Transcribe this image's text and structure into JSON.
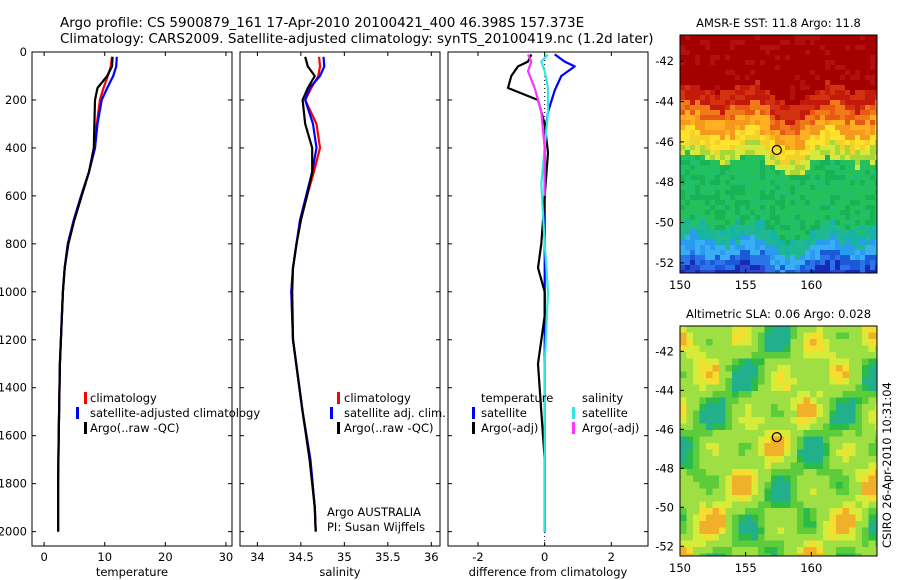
{
  "header": {
    "line1": "Argo profile: CS 5900879_161 17-Apr-2010 20100421_400 46.398S 157.373E",
    "line2": "Climatology: CARS2009. Satellite-adjusted climatology: synTS_20100419.nc (1.2d later)"
  },
  "colors": {
    "climatology": "#ff0000",
    "satellite": "#0000ff",
    "argo": "#000000",
    "sal_satellite": "#33e6e6",
    "sal_argo": "#ff33ff"
  },
  "chart_data": [
    {
      "type": "line",
      "xlabel": "temperature",
      "xticks": [
        "0",
        "10",
        "20",
        "30"
      ],
      "xlim": [
        -2,
        31
      ],
      "ylim": [
        2060,
        0
      ],
      "yticks": [
        "0",
        "200",
        "400",
        "600",
        "800",
        "1000",
        "1200",
        "1400",
        "1600",
        "1800",
        "2000"
      ],
      "series": [
        {
          "name": "climatology",
          "key": "climatology",
          "x": [
            11.2,
            11.0,
            10.5,
            9.8,
            9.2,
            8.7,
            8.4,
            7.4,
            6.1,
            4.9,
            3.9,
            3.4,
            3.1,
            2.6,
            2.4,
            2.3,
            2.3
          ],
          "y": [
            20,
            60,
            100,
            150,
            200,
            300,
            400,
            500,
            600,
            700,
            800,
            900,
            1000,
            1300,
            1600,
            1800,
            2000
          ]
        },
        {
          "name": "satellite-adjusted climatology",
          "key": "satellite",
          "x": [
            12.0,
            11.9,
            11.4,
            10.4,
            9.5,
            8.8,
            8.4,
            7.4,
            6.1,
            4.9,
            3.9,
            3.4,
            3.1,
            2.6,
            2.4,
            2.3,
            2.3
          ],
          "y": [
            20,
            60,
            100,
            150,
            200,
            300,
            400,
            500,
            600,
            700,
            800,
            900,
            1000,
            1300,
            1600,
            1800,
            2000
          ]
        },
        {
          "name": "Argo(..raw -QC)",
          "key": "argo",
          "x": [
            11.3,
            11.2,
            10.4,
            8.8,
            8.4,
            8.3,
            8.2,
            7.4,
            6.2,
            5.0,
            4.0,
            3.4,
            3.1,
            2.6,
            2.4,
            2.3,
            2.3
          ],
          "y": [
            20,
            60,
            100,
            150,
            200,
            300,
            400,
            500,
            600,
            700,
            800,
            900,
            1000,
            1300,
            1600,
            1800,
            2000
          ]
        }
      ],
      "legend": [
        "climatology",
        "satellite-adjusted climatology",
        "Argo(..raw -QC)"
      ]
    },
    {
      "type": "line",
      "xlabel": "salinity",
      "xticks": [
        "34",
        "34.5",
        "35",
        "35.5",
        "36"
      ],
      "xlim": [
        33.8,
        36.1
      ],
      "ylim": [
        2060,
        0
      ],
      "series": [
        {
          "name": "climatology",
          "key": "climatology",
          "x": [
            34.71,
            34.72,
            34.7,
            34.62,
            34.55,
            34.68,
            34.72,
            34.65,
            34.57,
            34.5,
            34.45,
            34.41,
            34.39,
            34.41,
            34.52,
            34.61,
            34.66,
            34.67
          ],
          "y": [
            20,
            60,
            100,
            150,
            200,
            300,
            400,
            500,
            600,
            700,
            800,
            900,
            1000,
            1200,
            1500,
            1700,
            1900,
            2000
          ]
        },
        {
          "name": "satellite adj. clim.",
          "key": "satellite",
          "x": [
            34.76,
            34.77,
            34.72,
            34.6,
            34.55,
            34.64,
            34.68,
            34.63,
            34.56,
            34.49,
            34.45,
            34.41,
            34.39,
            34.41,
            34.52,
            34.61,
            34.66,
            34.67
          ],
          "y": [
            20,
            60,
            100,
            150,
            200,
            300,
            400,
            500,
            600,
            700,
            800,
            900,
            1000,
            1200,
            1500,
            1700,
            1900,
            2000
          ]
        },
        {
          "name": "Argo(..raw -QC)",
          "key": "argo",
          "x": [
            34.55,
            34.58,
            34.66,
            34.58,
            34.52,
            34.55,
            34.63,
            34.63,
            34.57,
            34.5,
            34.45,
            34.41,
            34.4,
            34.41,
            34.52,
            34.6,
            34.66,
            34.67
          ],
          "y": [
            20,
            60,
            100,
            150,
            200,
            300,
            400,
            500,
            600,
            700,
            800,
            900,
            1000,
            1200,
            1500,
            1700,
            1900,
            2000
          ]
        }
      ],
      "legend": [
        "climatology",
        "satellite adj. clim.",
        "Argo(..raw -QC)"
      ],
      "annotation": [
        "Argo AUSTRALIA",
        "PI: Susan Wijffels"
      ]
    },
    {
      "type": "line",
      "xlabel": "difference from climatology",
      "xticks": [
        "-2",
        "0",
        "2"
      ],
      "xlim": [
        -2.9,
        3.1
      ],
      "ylim": [
        2060,
        0
      ],
      "series": [
        {
          "name": "temperature satellite",
          "key": "satellite",
          "x": [
            0.3,
            0.6,
            0.9,
            0.5,
            0.3,
            0.1,
            0.0,
            0.0,
            0.0,
            0.0,
            0.0,
            0.0
          ],
          "y": [
            10,
            40,
            60,
            100,
            160,
            250,
            350,
            500,
            800,
            1200,
            1600,
            2000
          ]
        },
        {
          "name": "temperature Argo(-adj)",
          "key": "argo",
          "x": [
            -0.4,
            -0.5,
            -0.8,
            -1.0,
            -1.1,
            -0.2,
            0.0,
            0.1,
            0.0,
            -0.1,
            -0.2,
            0.0,
            0.0,
            -0.2,
            -0.1,
            0.0,
            0.0
          ],
          "y": [
            10,
            40,
            60,
            100,
            150,
            200,
            300,
            420,
            600,
            800,
            900,
            1000,
            1100,
            1300,
            1500,
            1700,
            2000
          ]
        },
        {
          "name": "salinity satellite",
          "key": "sal_satellite",
          "x": [
            0.1,
            -0.1,
            0.0,
            0.1,
            0.1,
            0.0,
            -0.1,
            0.0,
            0.1,
            0.0,
            0.0,
            0.0,
            0.0
          ],
          "y": [
            10,
            40,
            80,
            150,
            250,
            400,
            550,
            800,
            1000,
            1300,
            1600,
            1800,
            2000
          ]
        },
        {
          "name": "salinity Argo(-adj)",
          "key": "sal_argo",
          "x": [
            -0.5,
            -0.4,
            -0.5,
            -0.3,
            -0.1,
            0.0,
            0.0
          ],
          "y": [
            10,
            40,
            80,
            150,
            250,
            400,
            600
          ]
        }
      ],
      "legend_temperature": {
        "title": "temperature",
        "items": [
          "satellite",
          "Argo(-adj)"
        ]
      },
      "legend_salinity": {
        "title": "salinity",
        "items": [
          "satellite",
          "Argo(-adj)"
        ]
      }
    },
    {
      "type": "heatmap",
      "title": "AMSR-E SST: 11.8 Argo: 11.8",
      "xticks": [
        "150",
        "155",
        "160"
      ],
      "yticks": [
        "-42",
        "-44",
        "-46",
        "-48",
        "-50",
        "-52"
      ],
      "xlim": [
        150,
        165
      ],
      "ylim": [
        -52.5,
        -40.7
      ],
      "marker": {
        "lon": 157.37,
        "lat": -46.4
      }
    },
    {
      "type": "heatmap",
      "title": "Altimetric SLA: 0.06 Argo: 0.028",
      "xticks": [
        "150",
        "155",
        "160"
      ],
      "yticks": [
        "-42",
        "-44",
        "-46",
        "-48",
        "-50",
        "-52"
      ],
      "xlim": [
        150,
        165
      ],
      "ylim": [
        -52.5,
        -40.7
      ],
      "marker": {
        "lon": 157.37,
        "lat": -46.4
      }
    }
  ],
  "footer_vertical": "CSIRO 26-Apr-2010 10:31:04"
}
